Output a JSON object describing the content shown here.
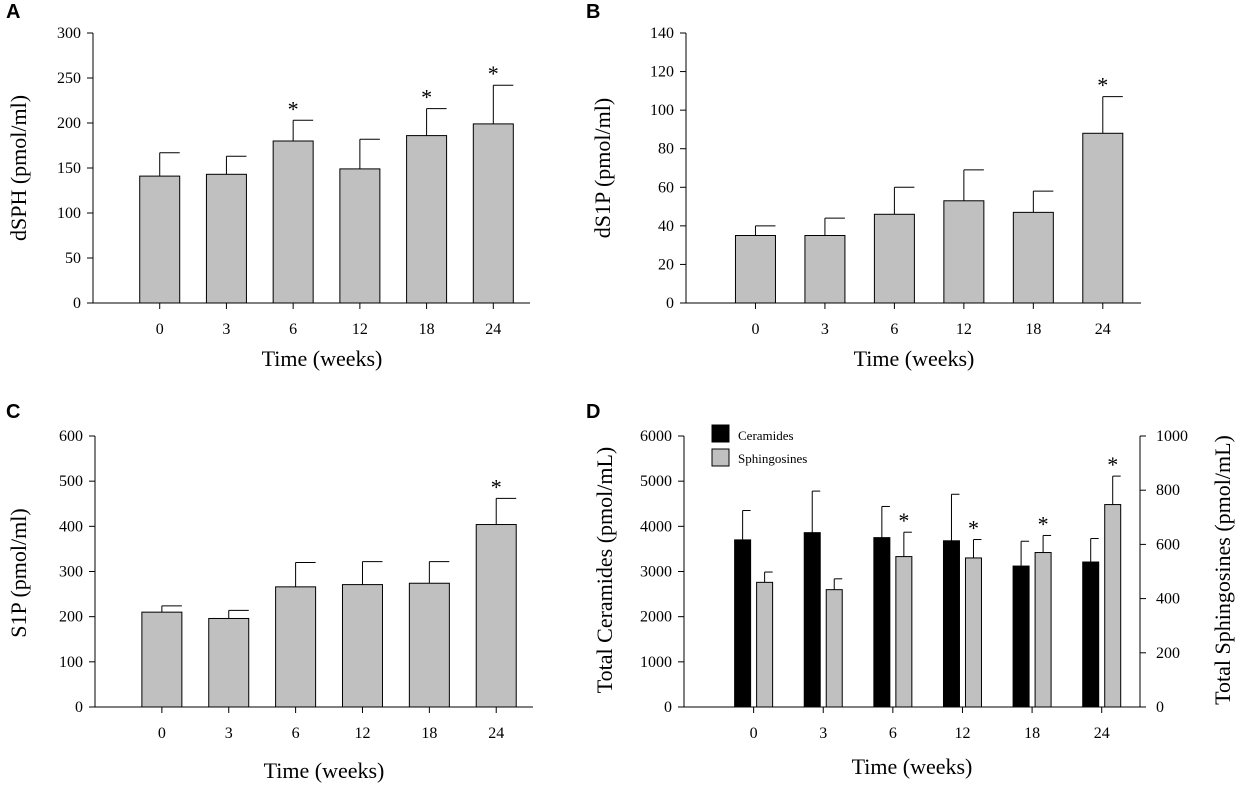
{
  "chart_data": [
    {
      "panel": "A",
      "type": "bar",
      "categories": [
        "0",
        "3",
        "6",
        "12",
        "18",
        "24"
      ],
      "values": [
        141,
        143,
        180,
        149,
        186,
        199
      ],
      "errors": [
        26,
        20,
        23,
        33,
        30,
        43
      ],
      "significant": [
        "",
        "",
        "*",
        "",
        "*",
        "*"
      ],
      "xlabel": "Time (weeks)",
      "ylabel": "dSPH (pmol/ml)",
      "ylim": [
        0,
        300
      ],
      "yticks": [
        "0",
        "50",
        "100",
        "150",
        "200",
        "250",
        "300"
      ],
      "bar_color": "#c0c0c0"
    },
    {
      "panel": "B",
      "type": "bar",
      "categories": [
        "0",
        "3",
        "6",
        "12",
        "18",
        "24"
      ],
      "values": [
        35,
        35,
        46,
        53,
        47,
        88
      ],
      "errors": [
        5,
        9,
        14,
        16,
        11,
        19
      ],
      "significant": [
        "",
        "",
        "",
        "",
        "",
        "*"
      ],
      "xlabel": "Time (weeks)",
      "ylabel": "dS1P (pmol/ml)",
      "ylim": [
        0,
        140
      ],
      "yticks": [
        "0",
        "20",
        "40",
        "60",
        "80",
        "100",
        "120",
        "140"
      ],
      "bar_color": "#c0c0c0"
    },
    {
      "panel": "C",
      "type": "bar",
      "categories": [
        "0",
        "3",
        "6",
        "12",
        "18",
        "24"
      ],
      "values": [
        210,
        196,
        266,
        271,
        274,
        404
      ],
      "errors": [
        14,
        18,
        54,
        51,
        48,
        58
      ],
      "significant": [
        "",
        "",
        "",
        "",
        "",
        "*"
      ],
      "xlabel": "Time (weeks)",
      "ylabel": "S1P (pmol/ml)",
      "ylim": [
        0,
        600
      ],
      "yticks": [
        "0",
        "100",
        "200",
        "300",
        "400",
        "500",
        "600"
      ],
      "bar_color": "#c0c0c0"
    },
    {
      "panel": "D",
      "type": "bar",
      "categories": [
        "0",
        "3",
        "6",
        "12",
        "18",
        "24"
      ],
      "series": [
        {
          "name": "Ceramides",
          "axis": "left",
          "values": [
            3700,
            3860,
            3750,
            3680,
            3120,
            3210
          ],
          "errors": [
            650,
            920,
            690,
            1030,
            550,
            520
          ],
          "significant": [
            "",
            "",
            "",
            "",
            "",
            ""
          ],
          "color": "#000000"
        },
        {
          "name": "Sphingosines",
          "axis": "right",
          "values": [
            460,
            433,
            555,
            550,
            570,
            747
          ],
          "errors": [
            38,
            40,
            90,
            68,
            63,
            105
          ],
          "significant": [
            "",
            "",
            "*",
            "*",
            "*",
            "*"
          ],
          "color": "#c0c0c0"
        }
      ],
      "xlabel": "Time (weeks)",
      "ylabel": "Total Ceramides (pmol/mL)",
      "ylabel_right": "Total Sphingosines (pmol/mL)",
      "ylim": [
        0,
        6000
      ],
      "ylim_right": [
        0,
        1000
      ],
      "yticks": [
        "0",
        "1000",
        "2000",
        "3000",
        "4000",
        "5000",
        "6000"
      ],
      "yticks_right": [
        "0",
        "200",
        "400",
        "600",
        "800",
        "1000"
      ],
      "legend_position": "top-left"
    }
  ]
}
